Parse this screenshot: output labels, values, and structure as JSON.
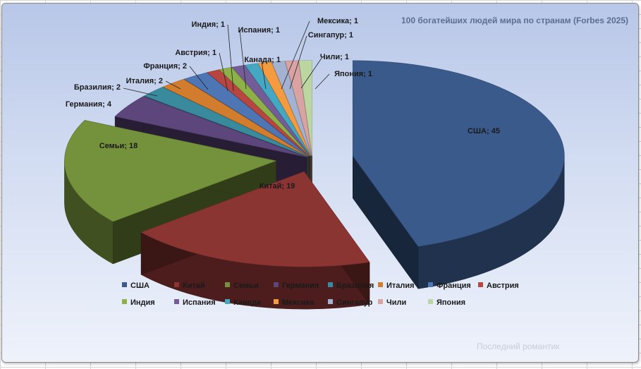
{
  "chart_data": {
    "type": "pie",
    "title": "100 богатейших людей мира по странам (Forbes 2025)",
    "categories": [
      "США",
      "Китай",
      "Семьи",
      "Германия",
      "Бразилия",
      "Италия",
      "Франция",
      "Австрия",
      "Индия",
      "Испания",
      "Канада",
      "Мексика",
      "Сингапур",
      "Чили",
      "Япония"
    ],
    "values": [
      45,
      19,
      18,
      4,
      2,
      2,
      2,
      1,
      1,
      1,
      1,
      1,
      1,
      1,
      1
    ],
    "labels": [
      "США; 45",
      "Китай; 19",
      "Семьи; 18",
      "Германия; 4",
      "Бразилия; 2",
      "Италия; 2",
      "Франция; 2",
      "Австрия; 1",
      "Индия; 1",
      "Испания; 1",
      "Канада; 1",
      "Мексика;  1",
      "Сингапур; 1",
      "Чили; 1",
      "Япония; 1"
    ],
    "colors": [
      "#3a5a8c",
      "#8b3533",
      "#74913b",
      "#5d467c",
      "#3a8a9d",
      "#d27d2d",
      "#4e76b5",
      "#b8453f",
      "#8db049",
      "#735c97",
      "#44a8c2",
      "#f49a3f",
      "#a2b2d0",
      "#d8a3a2",
      "#bcd6a1"
    ],
    "legend_position": "bottom",
    "style": "3d-exploded"
  },
  "watermark": "Последний романтик"
}
